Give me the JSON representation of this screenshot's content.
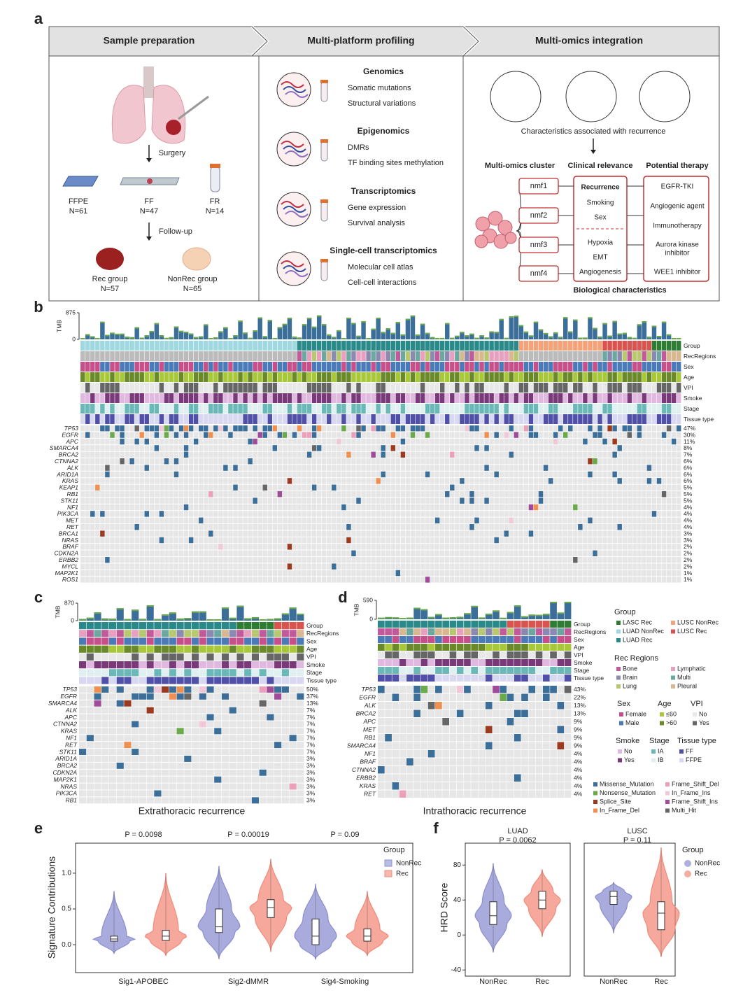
{
  "figure": {
    "panel_a": {
      "label": "a",
      "steps": [
        "Sample preparation",
        "Multi-platform profiling",
        "Multi-omics integration"
      ],
      "surgery": "Surgery",
      "samples": [
        {
          "name": "FFPE",
          "n": "N=61"
        },
        {
          "name": "FF",
          "n": "N=47"
        },
        {
          "name": "FR",
          "n": "N=14"
        }
      ],
      "follow_up": "Follow-up",
      "groups": [
        {
          "name": "Rec group",
          "n": "N=57"
        },
        {
          "name": "NonRec group",
          "n": "N=65"
        }
      ],
      "platforms": [
        {
          "title": "Genomics",
          "items": [
            "Somatic mutations",
            "Structural variations"
          ]
        },
        {
          "title": "Epigenomics",
          "items": [
            "DMRs",
            "TF binding sites methylation"
          ]
        },
        {
          "title": "Transcriptomics",
          "items": [
            "Gene expression",
            "Survival analysis"
          ]
        },
        {
          "title": "Single-cell transcriptomics",
          "items": [
            "Molecular cell atlas",
            "Cell-cell interactions"
          ]
        }
      ],
      "characteristics": "Characteristics associated with recurrence",
      "columns": [
        "Multi-omics cluster",
        "Clinical relevance",
        "Potential therapy"
      ],
      "clusters": [
        "nmf1",
        "nmf2",
        "nmf3",
        "nmf4"
      ],
      "clinical": [
        "Recurrence",
        "Smoking",
        "Sex"
      ],
      "biological": [
        "Hypoxia",
        "EMT",
        "Angiogenesis"
      ],
      "biological_title": "Biological characteristics",
      "therapies": [
        [
          "EGFR-TKI"
        ],
        [
          "Angiogenic agent"
        ],
        [
          "Immunotherapy"
        ],
        [
          "Aurora kinase",
          "inhibitor"
        ],
        [
          "WEE1 inhibitor"
        ]
      ]
    },
    "panel_b": {
      "label": "b",
      "tmb_label": "TMB",
      "ylim": [
        0,
        875
      ],
      "yticks": [
        0,
        875
      ],
      "tracks": [
        "Group",
        "RecRegions",
        "Sex",
        "Age",
        "VPI",
        "Smoke",
        "Stage",
        "Tissue type"
      ],
      "genes": [
        "TP53",
        "EGFR",
        "APC",
        "SMARCA4",
        "BRCA2",
        "CTNNA2",
        "ALK",
        "ARID1A",
        "KRAS",
        "KEAP1",
        "RB1",
        "STK11",
        "NF1",
        "PIK3CA",
        "MET",
        "RET",
        "BRCA1",
        "NRAS",
        "BRAF",
        "CDKN2A",
        "ERBB2",
        "MYCL",
        "MAP2K1",
        "ROS1"
      ],
      "values": [
        47,
        30,
        11,
        8,
        7,
        6,
        6,
        6,
        6,
        5,
        5,
        5,
        4,
        4,
        4,
        4,
        3,
        3,
        2,
        2,
        2,
        2,
        1,
        1
      ],
      "value_labels": [
        "47%",
        "30%",
        "11%",
        "8%",
        "7%",
        "6%",
        "6%",
        "6%",
        "6%",
        "5%",
        "5%",
        "5%",
        "4%",
        "4%",
        "4%",
        "4%",
        "3%",
        "3%",
        "2%",
        "2%",
        "2%",
        "2%",
        "1%",
        "1%"
      ]
    },
    "panel_c": {
      "label": "c",
      "tmb_label": "TMB",
      "ylim": [
        0,
        870
      ],
      "yticks": [
        0,
        870
      ],
      "title": "Extrathoracic recurrence",
      "tracks": [
        "Group",
        "RecRegions",
        "Sex",
        "Age",
        "VPI",
        "Smoke",
        "Stage",
        "Tissue type"
      ],
      "genes": [
        "TP53",
        "EGFR",
        "SMARCA4",
        "ALK",
        "APC",
        "CTNNA2",
        "KRAS",
        "NF1",
        "RET",
        "STK11",
        "ARID1A",
        "BRCA2",
        "CDKN2A",
        "MAP2K1",
        "NRAS",
        "PIK3CA",
        "RB1"
      ],
      "values": [
        50,
        37,
        13,
        7,
        7,
        7,
        7,
        7,
        7,
        7,
        3,
        3,
        3,
        3,
        3,
        3,
        3
      ],
      "value_labels": [
        "50%",
        "37%",
        "13%",
        "7%",
        "7%",
        "7%",
        "7%",
        "7%",
        "7%",
        "7%",
        "3%",
        "3%",
        "3%",
        "3%",
        "3%",
        "3%",
        "3%"
      ]
    },
    "panel_d": {
      "label": "d",
      "tmb_label": "TMB",
      "ylim": [
        0,
        590
      ],
      "yticks": [
        0,
        590
      ],
      "title": "Intrathoracic recurrence",
      "tracks": [
        "Group",
        "RecRegions",
        "Sex",
        "Age",
        "VPI",
        "Smoke",
        "Stage",
        "Tissue type"
      ],
      "genes": [
        "TP53",
        "EGFR",
        "ALK",
        "BRCA2",
        "APC",
        "MET",
        "RB1",
        "SMARCA4",
        "NF1",
        "BRAF",
        "CTNNA2",
        "ERBB2",
        "KRAS",
        "RET"
      ],
      "values": [
        43,
        22,
        13,
        13,
        9,
        9,
        9,
        9,
        4,
        4,
        4,
        4,
        4,
        4
      ],
      "value_labels": [
        "43%",
        "22%",
        "13%",
        "13%",
        "9%",
        "9%",
        "9%",
        "9%",
        "4%",
        "4%",
        "4%",
        "4%",
        "4%",
        "4%"
      ]
    },
    "legend": [
      {
        "title": "Group",
        "items": [
          {
            "name": "LASC Rec",
            "color": "#2e7d32"
          },
          {
            "name": "LUSC NonRec",
            "color": "#f4a27a"
          },
          {
            "name": "LUAD NonRec",
            "color": "#9fd8e0"
          },
          {
            "name": "LUSC Rec",
            "color": "#d9534f"
          },
          {
            "name": "LUAD Rec",
            "color": "#2a8a8a"
          }
        ]
      },
      {
        "title": "Rec Regions",
        "items": [
          {
            "name": "Bone",
            "color": "#c05a9a"
          },
          {
            "name": "Lymphatic",
            "color": "#e8a0c0"
          },
          {
            "name": "Brain",
            "color": "#8a8ab0"
          },
          {
            "name": "Multi",
            "color": "#6aa8a0"
          },
          {
            "name": "Lung",
            "color": "#b8c870"
          },
          {
            "name": "Pleural",
            "color": "#d8b890"
          }
        ]
      },
      {
        "title": "Sex",
        "items": [
          {
            "name": "Female",
            "color": "#c8508a"
          },
          {
            "name": "Male",
            "color": "#4a7ab8"
          }
        ]
      },
      {
        "title": "Age",
        "items": [
          {
            "name": "≤60",
            "color": "#a8c83a"
          },
          {
            "name": ">60",
            "color": "#6a8a2a"
          }
        ]
      },
      {
        "title": "VPI",
        "items": [
          {
            "name": "No",
            "color": "#e8e8e8"
          },
          {
            "name": "Yes",
            "color": "#666666"
          }
        ]
      },
      {
        "title": "Smoke",
        "items": [
          {
            "name": "No",
            "color": "#e0b8e0"
          },
          {
            "name": "Yes",
            "color": "#7a3a7a"
          }
        ]
      },
      {
        "title": "Stage",
        "items": [
          {
            "name": "IA",
            "color": "#6ab8b8"
          },
          {
            "name": "IB",
            "color": "#e0f0f0"
          }
        ]
      },
      {
        "title": "Tissue type",
        "items": [
          {
            "name": "FF",
            "color": "#5050a8"
          },
          {
            "name": "FFPE",
            "color": "#d8d8f0"
          }
        ]
      },
      {
        "items": [
          {
            "name": "Missense_Mutation",
            "color": "#3b6e99"
          },
          {
            "name": "Frame_Shift_Del",
            "color": "#eaa0b8"
          },
          {
            "name": "Nonsense_Mutation",
            "color": "#6aaa4a"
          },
          {
            "name": "In_Frame_Ins",
            "color": "#f0c8d8"
          },
          {
            "name": "Splice_Site",
            "color": "#9b3a1e"
          },
          {
            "name": "Frame_Shift_Ins",
            "color": "#a04a9a"
          },
          {
            "name": "In_Frame_Del",
            "color": "#f09050"
          },
          {
            "name": "Multi_Hit",
            "color": "#666666"
          }
        ]
      }
    ],
    "panel_e": {
      "label": "e",
      "type": "violin",
      "ylabel": "Signature Contributions",
      "categories": [
        "Sig1-APOBEC",
        "Sig2-dMMR",
        "Sig4-Smoking"
      ],
      "p_values": [
        "P = 0.0098",
        "P = 0.00019",
        "P = 0.09"
      ],
      "ylim": [
        -0.39,
        1.42
      ],
      "yticks": [
        {
          "value": 0,
          "label": "0.0"
        },
        {
          "value": 0.5,
          "label": "0.5"
        },
        {
          "value": 1,
          "label": "1.0"
        }
      ],
      "legend_title": "Group",
      "series": [
        {
          "name": "NonRec",
          "color": "#8c8fd0",
          "values": [
            [
              -0.12,
              0.05,
              0.08,
              0.12,
              0.75
            ],
            [
              -0.2,
              0.17,
              0.25,
              0.5,
              1.1
            ],
            [
              -0.2,
              0.0,
              0.12,
              0.36,
              0.85
            ]
          ]
        },
        {
          "name": "Rec",
          "color": "#f28b7a",
          "values": [
            [
              -0.15,
              0.06,
              0.12,
              0.2,
              1.0
            ],
            [
              -0.1,
              0.38,
              0.52,
              0.63,
              1.2
            ],
            [
              -0.15,
              0.05,
              0.12,
              0.22,
              0.75
            ]
          ]
        }
      ]
    },
    "panel_f": {
      "label": "f",
      "type": "violin",
      "ylabel": "HRD Score",
      "ylim": [
        -47,
        105
      ],
      "yticks": [
        -40,
        0,
        40,
        80
      ],
      "legend_title": "Group",
      "categories": [
        "NonRec",
        "Rec"
      ],
      "colors": [
        "#8c8fd0",
        "#f28b7a"
      ],
      "panels": [
        {
          "title": "LUAD",
          "p": "P = 0.0062",
          "values": [
            [
              -20,
              12,
              22,
              38,
              82
            ],
            [
              -2,
              30,
              40,
              50,
              75
            ]
          ]
        },
        {
          "title": "LUSC",
          "p": "P = 0.11",
          "values": [
            [
              2,
              35,
              44,
              50,
              60
            ],
            [
              -25,
              6,
              25,
              38,
              100
            ]
          ]
        }
      ]
    }
  }
}
